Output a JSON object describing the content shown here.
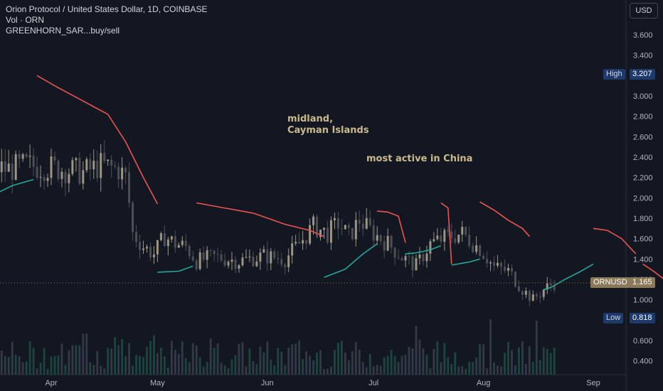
{
  "header": {
    "symbol_line": "Orion Protocol / United States Dollar, 1D, COINBASE",
    "volume_line": "Vol · ORN",
    "indicator_line": "GREENHORN_SAR...buy/sell"
  },
  "currency_button": "USD",
  "annotations": [
    "midland,",
    "Cayman Islands",
    "most active in China"
  ],
  "tags": {
    "high_label": "High",
    "high_value": "3.207",
    "low_label": "Low",
    "low_value": "0.818",
    "symbol_label": "ORNUSD",
    "last_value": "1.165"
  },
  "colors": {
    "background": "#131722",
    "up": "#9b9583",
    "down": "#4e4e57",
    "sar_up": "#26a69a",
    "sar_down": "#ef5350",
    "high_low_tag": "#1e3a6a",
    "last_tag": "#8a7a5a"
  },
  "chart_data": {
    "type": "candlestick",
    "y_axis_ticks": [
      "0.400",
      "0.600",
      "0.800",
      "1.000",
      "1.200",
      "1.400",
      "1.600",
      "1.800",
      "2.000",
      "2.200",
      "2.400",
      "2.600",
      "2.800",
      "3.000",
      "3.200",
      "3.400",
      "3.600"
    ],
    "x_axis_ticks": [
      "Apr",
      "May",
      "Jun",
      "Jul",
      "Aug",
      "Sep"
    ],
    "y_range": [
      0.3,
      3.75
    ],
    "high": 3.207,
    "low": 0.818,
    "last": 1.165,
    "close_path": [
      [
        "2022-03-01",
        2.5
      ],
      [
        "2022-03-05",
        2.3
      ],
      [
        "2022-03-10",
        2.25
      ],
      [
        "2022-03-15",
        2.3
      ],
      [
        "2022-03-20",
        2.28
      ],
      [
        "2022-03-25",
        2.32
      ],
      [
        "2022-03-31",
        2.3
      ],
      [
        "2022-04-05",
        2.28
      ],
      [
        "2022-04-10",
        2.25
      ],
      [
        "2022-04-15",
        2.32
      ],
      [
        "2022-04-20",
        2.28
      ],
      [
        "2022-04-22",
        2.2
      ],
      [
        "2022-04-23",
        1.95
      ],
      [
        "2022-04-24",
        1.65
      ],
      [
        "2022-04-27",
        1.52
      ],
      [
        "2022-04-30",
        1.45
      ],
      [
        "2022-05-03",
        1.62
      ],
      [
        "2022-05-06",
        1.55
      ],
      [
        "2022-05-09",
        1.52
      ],
      [
        "2022-05-12",
        1.38
      ],
      [
        "2022-05-17",
        1.42
      ],
      [
        "2022-05-24",
        1.38
      ],
      [
        "2022-05-31",
        1.43
      ],
      [
        "2022-06-06",
        1.4
      ],
      [
        "2022-06-10",
        1.55
      ],
      [
        "2022-06-14",
        1.72
      ],
      [
        "2022-06-18",
        1.65
      ],
      [
        "2022-06-21",
        1.75
      ],
      [
        "2022-06-24",
        1.62
      ],
      [
        "2022-06-27",
        1.78
      ],
      [
        "2022-07-01",
        1.65
      ],
      [
        "2022-07-05",
        1.55
      ],
      [
        "2022-07-09",
        1.42
      ],
      [
        "2022-07-13",
        1.33
      ],
      [
        "2022-07-17",
        1.55
      ],
      [
        "2022-07-22",
        1.62
      ],
      [
        "2022-07-26",
        1.65
      ],
      [
        "2022-07-31",
        1.5
      ],
      [
        "2022-08-04",
        1.32
      ],
      [
        "2022-08-08",
        1.28
      ],
      [
        "2022-08-12",
        1.1
      ],
      [
        "2022-08-15",
        1.0
      ],
      [
        "2022-08-18",
        1.1
      ],
      [
        "2022-08-21",
        1.165
      ]
    ],
    "sar": [
      {
        "dir": "up",
        "points": [
          [
            "2022-02-28",
            1.58
          ],
          [
            "2022-03-06",
            1.8
          ],
          [
            "2022-03-14",
            2.0
          ],
          [
            "2022-03-21",
            2.12
          ],
          [
            "2022-03-27",
            2.18
          ]
        ]
      },
      {
        "dir": "down",
        "points": [
          [
            "2022-03-28",
            3.2
          ],
          [
            "2022-04-02",
            3.1
          ],
          [
            "2022-04-10",
            2.95
          ],
          [
            "2022-04-17",
            2.82
          ],
          [
            "2022-04-22",
            2.55
          ],
          [
            "2022-04-27",
            2.2
          ],
          [
            "2022-05-01",
            1.94
          ]
        ]
      },
      {
        "dir": "up",
        "points": [
          [
            "2022-05-01",
            1.27
          ],
          [
            "2022-05-07",
            1.28
          ],
          [
            "2022-05-11",
            1.33
          ]
        ]
      },
      {
        "dir": "down",
        "points": [
          [
            "2022-05-12",
            1.95
          ],
          [
            "2022-05-20",
            1.9
          ],
          [
            "2022-05-28",
            1.85
          ],
          [
            "2022-06-06",
            1.74
          ],
          [
            "2022-06-13",
            1.68
          ],
          [
            "2022-06-17",
            1.62
          ]
        ]
      },
      {
        "dir": "up",
        "points": [
          [
            "2022-06-17",
            1.22
          ],
          [
            "2022-06-23",
            1.3
          ],
          [
            "2022-06-28",
            1.45
          ],
          [
            "2022-07-02",
            1.55
          ]
        ]
      },
      {
        "dir": "down",
        "points": [
          [
            "2022-07-02",
            1.87
          ],
          [
            "2022-07-05",
            1.86
          ],
          [
            "2022-07-08",
            1.82
          ],
          [
            "2022-07-10",
            1.56
          ]
        ]
      },
      {
        "dir": "up",
        "points": [
          [
            "2022-07-10",
            1.45
          ],
          [
            "2022-07-13",
            1.46
          ],
          [
            "2022-07-17",
            1.49
          ],
          [
            "2022-07-20",
            1.53
          ]
        ]
      },
      {
        "dir": "down",
        "points": [
          [
            "2022-07-20",
            1.95
          ],
          [
            "2022-07-22",
            1.9
          ],
          [
            "2022-07-23",
            1.35
          ]
        ]
      },
      {
        "dir": "up",
        "points": [
          [
            "2022-07-23",
            1.34
          ],
          [
            "2022-07-28",
            1.37
          ],
          [
            "2022-07-31",
            1.4
          ]
        ]
      },
      {
        "dir": "down",
        "points": [
          [
            "2022-07-31",
            1.96
          ],
          [
            "2022-08-04",
            1.88
          ],
          [
            "2022-08-08",
            1.78
          ],
          [
            "2022-08-12",
            1.7
          ],
          [
            "2022-08-14",
            1.62
          ]
        ]
      },
      {
        "dir": "up",
        "points": [
          [
            "2022-08-18",
            1.1
          ],
          [
            "2022-08-20",
            1.12
          ],
          [
            "2022-08-24",
            1.2
          ],
          [
            "2022-08-28",
            1.27
          ],
          [
            "2022-09-01",
            1.35
          ]
        ]
      },
      {
        "dir": "down",
        "points": [
          [
            "2022-09-01",
            1.7
          ],
          [
            "2022-09-05",
            1.68
          ],
          [
            "2022-09-09",
            1.6
          ],
          [
            "2022-09-13",
            1.45
          ]
        ]
      },
      {
        "dir": "down",
        "points": [
          [
            "2022-09-15",
            1.35
          ],
          [
            "2022-09-18",
            1.28
          ],
          [
            "2022-09-21",
            1.2
          ]
        ]
      }
    ]
  }
}
